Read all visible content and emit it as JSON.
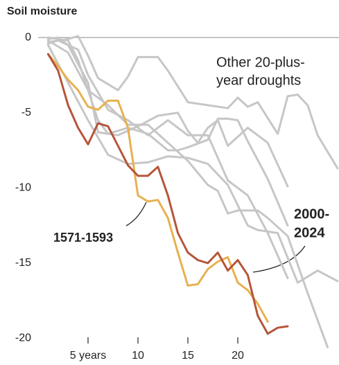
{
  "chart_data": {
    "type": "line",
    "title": "Soil moisture",
    "xlim": [
      0,
      30
    ],
    "ylim": [
      -21.5,
      0.7
    ],
    "xticks": [
      {
        "value": 5,
        "label": "5 years"
      },
      10,
      15,
      20
    ],
    "yticks": [
      0,
      -5,
      -10,
      -15,
      -20
    ],
    "zero_line": true,
    "series": [
      {
        "color": "#c6c6c6",
        "x": [
          1,
          3,
          4,
          5,
          6,
          8,
          9,
          10,
          12,
          13,
          15,
          17,
          19,
          20,
          21,
          22,
          24,
          25,
          26,
          27,
          28,
          30
        ],
        "values": [
          -0.3,
          -0.1,
          0.1,
          -1.2,
          -2.7,
          -3.5,
          -2.6,
          -1.3,
          -1.3,
          -2.2,
          -4.3,
          -4.5,
          -4.7,
          -4.0,
          -4.6,
          -4.3,
          -6.4,
          -3.9,
          -3.8,
          -4.5,
          -6.5,
          -8.7
        ]
      },
      {
        "color": "#c6c6c6",
        "x": [
          1,
          2,
          3,
          5,
          6,
          8,
          10,
          12,
          14,
          15,
          16,
          17,
          18,
          19,
          21,
          23,
          25
        ],
        "values": [
          -0.1,
          0,
          -0.5,
          -3,
          -6.3,
          -6.5,
          -5.9,
          -5.2,
          -5.0,
          -6.2,
          -7.0,
          -6.0,
          -5.5,
          -7.2,
          -6.0,
          -7.0,
          -9.9
        ]
      },
      {
        "color": "#c6c6c6",
        "x": [
          1,
          3,
          4,
          6,
          7,
          9,
          11,
          13,
          14,
          15,
          17,
          18,
          19,
          20,
          21,
          23,
          25
        ],
        "values": [
          0,
          -0.2,
          -1.5,
          -5.5,
          -6.4,
          -6.0,
          -6.4,
          -7.5,
          -7.5,
          -7.3,
          -6.8,
          -5.4,
          -5.4,
          -5.5,
          -6.9,
          -9.4,
          -12.5
        ]
      },
      {
        "color": "#c6c6c6",
        "x": [
          1,
          3,
          5,
          7,
          9,
          11,
          13,
          15,
          17,
          18,
          19,
          20,
          22,
          23,
          25,
          27,
          29
        ],
        "values": [
          -0.2,
          -1.0,
          -3.5,
          -4.5,
          -5.8,
          -5.8,
          -7.0,
          -8.2,
          -9.8,
          -10.2,
          -11.7,
          -11.5,
          -11.5,
          -12.0,
          -13.2,
          -17,
          -20.6
        ]
      },
      {
        "color": "#c6c6c6",
        "x": [
          1,
          3,
          5,
          7,
          9,
          11,
          13,
          15,
          17,
          19,
          21,
          22,
          24,
          26,
          28,
          30
        ],
        "values": [
          -0.5,
          -3.0,
          -5.5,
          -7.8,
          -8.4,
          -8.3,
          -7.9,
          -8.0,
          -8.4,
          -9.8,
          -12.5,
          -12.8,
          -13.0,
          -16.3,
          -15.5,
          -16.2
        ]
      },
      {
        "color": "#c6c6c6",
        "x": [
          1,
          2,
          4,
          5,
          7,
          9,
          11,
          13,
          15,
          17,
          19,
          21,
          23,
          25
        ],
        "values": [
          -0.4,
          -0.2,
          -0.8,
          -2.5,
          -4.8,
          -5.5,
          -6.5,
          -5.5,
          -6.5,
          -6.5,
          -9.5,
          -10.5,
          -13.0,
          -16.0
        ]
      },
      {
        "color": "#e8b04f",
        "x": [
          1,
          2,
          3,
          4,
          5,
          6,
          7,
          8,
          9,
          10,
          11,
          12,
          13,
          14,
          15,
          16,
          17,
          18,
          19,
          20,
          21,
          22,
          23
        ],
        "values": [
          -1.1,
          -1.9,
          -2.8,
          -3.5,
          -4.6,
          -4.8,
          -4.2,
          -4.2,
          -6.0,
          -10.5,
          -10.9,
          -10.8,
          -12.0,
          -14.3,
          -16.5,
          -16.4,
          -15.4,
          -14.9,
          -14.6,
          -16.3,
          -16.8,
          -17.7,
          -18.9
        ]
      },
      {
        "color": "#b5553a",
        "x": [
          1,
          2,
          3,
          4,
          5,
          6,
          7,
          8,
          9,
          10,
          11,
          12,
          13,
          14,
          15,
          16,
          17,
          18,
          19,
          20,
          21,
          22,
          23,
          24,
          25
        ],
        "values": [
          -1.1,
          -2.2,
          -4.5,
          -6.0,
          -7.1,
          -5.7,
          -5.9,
          -7.2,
          -8.5,
          -9.2,
          -9.2,
          -8.6,
          -10.5,
          -13.0,
          -14.3,
          -14.8,
          -15.0,
          -14.3,
          -15.5,
          -14.8,
          -15.8,
          -18.5,
          -19.7,
          -19.3,
          -19.2
        ]
      }
    ],
    "annotations": [
      {
        "lines": [
          "Other 20-plus-",
          "year droughts"
        ]
      },
      {
        "lines": [
          "1571-1593"
        ],
        "color": "#e8b04f"
      },
      {
        "lines": [
          "2000-",
          "2024"
        ],
        "color": "#b5553a"
      }
    ]
  }
}
